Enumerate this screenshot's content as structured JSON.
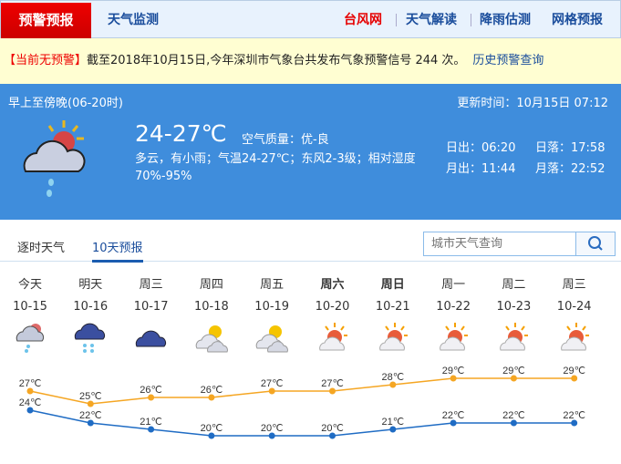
{
  "nav": {
    "active": "预警预报",
    "monitor": "天气监测",
    "right": [
      {
        "label": "台风网",
        "color": "#e60000"
      },
      {
        "label": "天气解读"
      },
      {
        "label": "降雨估测"
      },
      {
        "label": "网格预报"
      }
    ]
  },
  "alert": {
    "status": "【当前无预警】",
    "text": "截至2018年10月15日,今年深圳市气象台共发布气象预警信号 244 次。",
    "link": "历史预警查询"
  },
  "now": {
    "period": "早上至傍晚(06-20时)",
    "updated": "更新时间：10月15日 07:12",
    "temp": "24-27℃",
    "aqi": "空气质量：优-良",
    "desc": "多云，有小雨；气温24-27℃；东风2-3级；相对湿度70%-95%",
    "sunrise": "日出：06:20",
    "sunset": "日落：17:58",
    "moonrise": "月出：11:44",
    "moonset": "月落：22:52",
    "icon": "cloudy-light-rain-icon"
  },
  "tabs": [
    "逐时天气",
    "10天预报"
  ],
  "search": {
    "placeholder": "城市天气查询"
  },
  "forecast": [
    {
      "wk": "今天",
      "date": "10-15",
      "icon": "cloud-rain",
      "high": 27,
      "low": 24
    },
    {
      "wk": "明天",
      "date": "10-16",
      "icon": "dark-cloud-rain",
      "high": 25,
      "low": 22
    },
    {
      "wk": "周三",
      "date": "10-17",
      "icon": "dark-cloud",
      "high": 26,
      "low": 21
    },
    {
      "wk": "周四",
      "date": "10-18",
      "icon": "cloudy",
      "high": 26,
      "low": 20
    },
    {
      "wk": "周五",
      "date": "10-19",
      "icon": "cloudy",
      "high": 27,
      "low": 20
    },
    {
      "wk": "周六",
      "date": "10-20",
      "icon": "partly-sunny",
      "high": 27,
      "low": 20,
      "bold": true
    },
    {
      "wk": "周日",
      "date": "10-21",
      "icon": "partly-sunny",
      "high": 28,
      "low": 21,
      "bold": true
    },
    {
      "wk": "周一",
      "date": "10-22",
      "icon": "partly-sunny",
      "high": 29,
      "low": 22
    },
    {
      "wk": "周二",
      "date": "10-23",
      "icon": "partly-sunny",
      "high": 29,
      "low": 22
    },
    {
      "wk": "周三",
      "date": "10-24",
      "icon": "partly-sunny",
      "high": 29,
      "low": 22
    }
  ],
  "chart_data": {
    "type": "line",
    "categories": [
      "10-15",
      "10-16",
      "10-17",
      "10-18",
      "10-19",
      "10-20",
      "10-21",
      "10-22",
      "10-23",
      "10-24"
    ],
    "series": [
      {
        "values": [
          27,
          25,
          26,
          26,
          27,
          27,
          28,
          29,
          29,
          29
        ],
        "color": "#f5a623"
      },
      {
        "values": [
          24,
          22,
          21,
          20,
          20,
          20,
          21,
          22,
          22,
          22
        ],
        "color": "#1f6cc4"
      }
    ],
    "unit": "℃"
  }
}
